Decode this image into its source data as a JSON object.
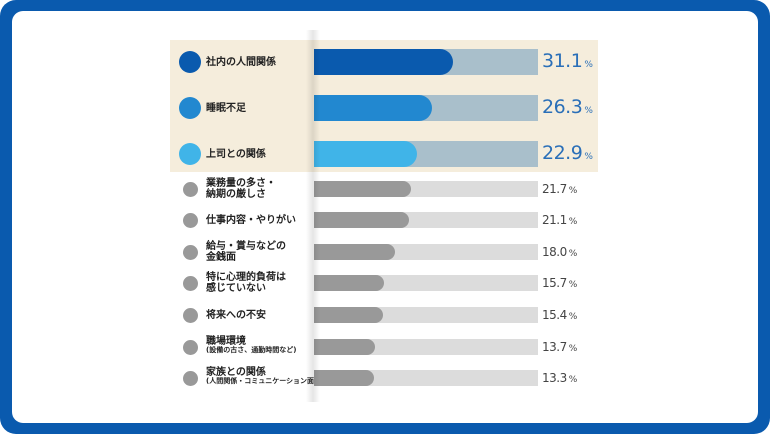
{
  "chart_data": {
    "type": "bar",
    "orientation": "horizontal",
    "unit": "%",
    "xlim": [
      0,
      50
    ],
    "grid": false,
    "categories": [
      {
        "label": "社内の人間関係",
        "sub": "",
        "value": 31.1,
        "color": "#0a5aae",
        "track": "#a9bfcb",
        "highlight": true
      },
      {
        "label": "睡眠不足",
        "sub": "",
        "value": 26.3,
        "color": "#2288d0",
        "track": "#a9bfcb",
        "highlight": true
      },
      {
        "label": "上司との関係",
        "sub": "",
        "value": 22.9,
        "color": "#40b4e8",
        "track": "#a9bfcb",
        "highlight": true
      },
      {
        "label": "業務量の多さ・\n納期の厳しさ",
        "sub": "",
        "value": 21.7,
        "color": "#999999",
        "track": "#dcdcdc",
        "highlight": false
      },
      {
        "label": "仕事内容・やりがい",
        "sub": "",
        "value": 21.1,
        "color": "#999999",
        "track": "#dcdcdc",
        "highlight": false
      },
      {
        "label": "給与・賞与などの\n金銭面",
        "sub": "",
        "value": 18.0,
        "color": "#999999",
        "track": "#dcdcdc",
        "highlight": false
      },
      {
        "label": "特に心理的負荷は\n感じていない",
        "sub": "",
        "value": 15.7,
        "color": "#999999",
        "track": "#dcdcdc",
        "highlight": false
      },
      {
        "label": "将来への不安",
        "sub": "",
        "value": 15.4,
        "color": "#999999",
        "track": "#dcdcdc",
        "highlight": false
      },
      {
        "label": "職場環境",
        "sub": "(設備の古さ、通勤時間など)",
        "value": 13.7,
        "color": "#999999",
        "track": "#dcdcdc",
        "highlight": false
      },
      {
        "label": "家族との関係",
        "sub": "(人間関係・コミュニケーション面)",
        "value": 13.3,
        "color": "#999999",
        "track": "#dcdcdc",
        "highlight": false
      }
    ],
    "value_labels": [
      "31.1",
      "26.3",
      "22.9",
      "21.7",
      "21.1",
      "18.0",
      "15.7",
      "15.4",
      "13.7",
      "13.3"
    ],
    "value_suffix": "%",
    "value_label_color_highlight": "#2a6fb8",
    "value_label_color": "#444444"
  }
}
